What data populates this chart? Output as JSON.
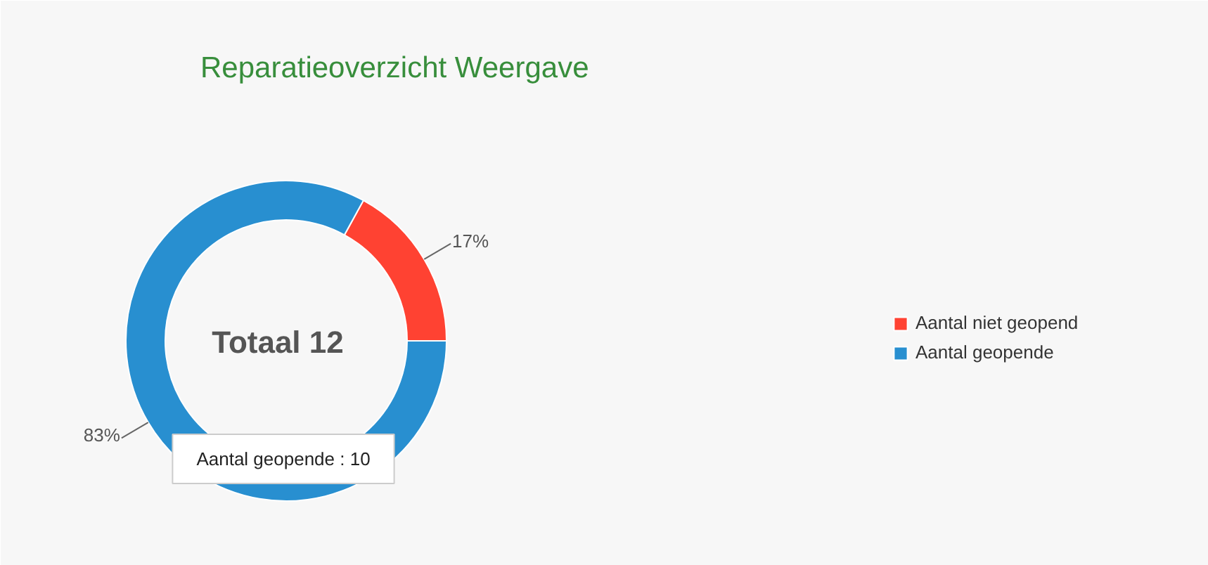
{
  "chart_data": {
    "type": "donut",
    "title": "Reparatieoverzicht Weergave",
    "categories": [
      "Aantal niet geopend",
      "Aantal geopende"
    ],
    "values": [
      17,
      83
    ],
    "colors": [
      "#ff4232",
      "#288fd0"
    ],
    "value_labels": [
      "17%",
      "83%"
    ],
    "legend": "right",
    "annotations": [
      "Totaal 12",
      "Aantal geopende : 10"
    ]
  }
}
